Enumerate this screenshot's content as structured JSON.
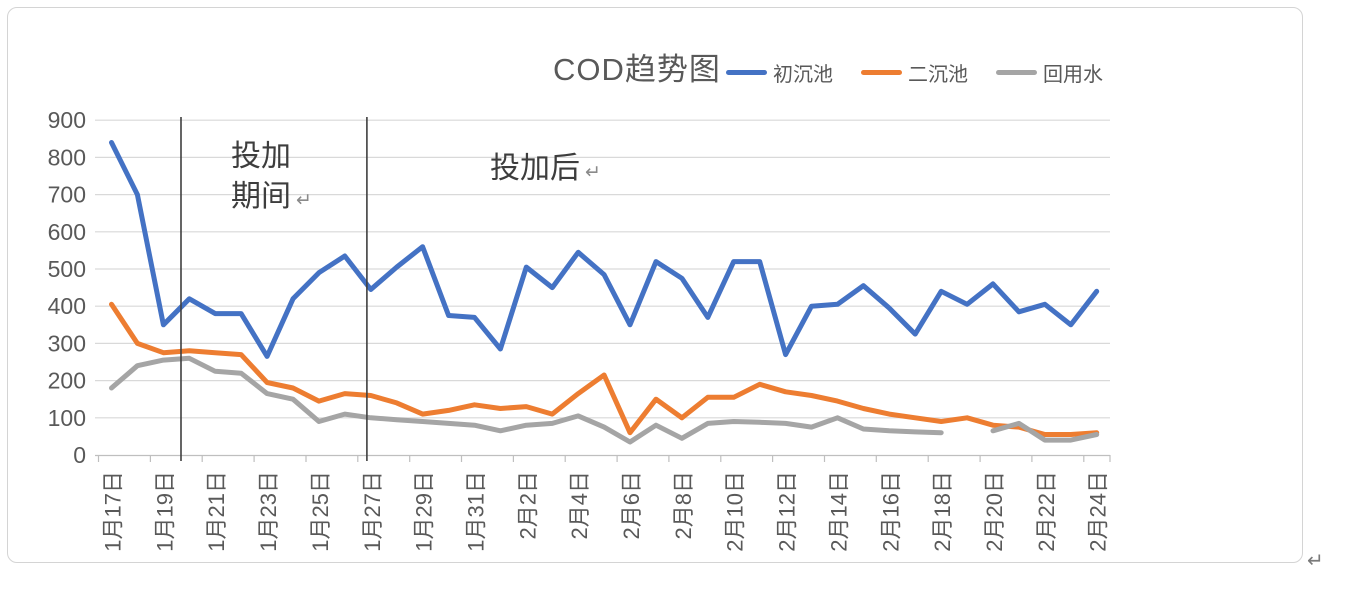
{
  "document": {
    "paragraph_return_mark": "↵"
  },
  "chart": {
    "title": "COD趋势图",
    "legend_items": [
      {
        "label": "初沉池",
        "color": "#4472C4"
      },
      {
        "label": "二沉池",
        "color": "#ED7D31"
      },
      {
        "label": "回用水",
        "color": "#A5A5A5"
      }
    ],
    "annotations": {
      "during_dosing_line1": "投加",
      "during_dosing_line2": "期间",
      "during_dosing_return_mark": "↵",
      "after_dosing": "投加后",
      "after_dosing_return_mark": "↵"
    }
  },
  "chart_data": {
    "type": "line",
    "title": "COD趋势图",
    "ylim": [
      0,
      900
    ],
    "ytick_interval": 100,
    "yticks": [
      0,
      100,
      200,
      300,
      400,
      500,
      600,
      700,
      800,
      900
    ],
    "grid": true,
    "legend_position": "top-right",
    "x_label_rotation_deg": 90,
    "x_tick_label_step": 2,
    "axis_text_color": "#595959",
    "gridline_color": "#D9D9D9",
    "axis_line_color": "#BFBFBF",
    "categories": [
      "1月17日",
      "1月18日",
      "1月19日",
      "1月20日",
      "1月21日",
      "1月22日",
      "1月23日",
      "1月24日",
      "1月25日",
      "1月26日",
      "1月27日",
      "1月28日",
      "1月29日",
      "1月30日",
      "1月31日",
      "2月1日",
      "2月2日",
      "2月3日",
      "2月4日",
      "2月5日",
      "2月6日",
      "2月7日",
      "2月8日",
      "2月9日",
      "2月10日",
      "2月11日",
      "2月12日",
      "2月13日",
      "2月14日",
      "2月15日",
      "2月16日",
      "2月17日",
      "2月18日",
      "2月19日",
      "2月20日",
      "2月21日",
      "2月22日",
      "2月23日",
      "2月24日"
    ],
    "x_tick_labels_shown": [
      "1月17日",
      "1月19日",
      "1月21日",
      "1月23日",
      "1月25日",
      "1月27日",
      "1月29日",
      "1月31日",
      "2月2日",
      "2月4日",
      "2月6日",
      "2月8日",
      "2月10日",
      "2月12日",
      "2月14日",
      "2月16日",
      "2月18日",
      "2月20日",
      "2月22日",
      "2月24日"
    ],
    "series": [
      {
        "name": "初沉池",
        "color": "#4472C4",
        "values": [
          840,
          700,
          350,
          420,
          380,
          380,
          265,
          420,
          490,
          535,
          445,
          505,
          560,
          375,
          370,
          285,
          505,
          450,
          545,
          485,
          350,
          520,
          475,
          370,
          520,
          520,
          270,
          400,
          405,
          455,
          395,
          325,
          440,
          405,
          460,
          385,
          405,
          350,
          440
        ]
      },
      {
        "name": "二沉池",
        "color": "#ED7D31",
        "values": [
          405,
          300,
          275,
          280,
          275,
          270,
          195,
          180,
          145,
          165,
          160,
          140,
          110,
          120,
          135,
          125,
          130,
          110,
          165,
          215,
          60,
          150,
          100,
          155,
          155,
          190,
          170,
          160,
          145,
          125,
          110,
          100,
          90,
          100,
          80,
          75,
          55,
          55,
          60
        ]
      },
      {
        "name": "回用水",
        "color": "#A5A5A5",
        "values": [
          180,
          240,
          255,
          260,
          225,
          220,
          165,
          150,
          90,
          110,
          100,
          95,
          90,
          85,
          80,
          65,
          80,
          85,
          105,
          75,
          35,
          80,
          45,
          85,
          90,
          88,
          85,
          75,
          100,
          70,
          65,
          62,
          60,
          null,
          65,
          85,
          40,
          40,
          55
        ]
      }
    ],
    "reference_lines": [
      {
        "x_index": 2.68,
        "label": "投加期间"
      },
      {
        "x_index": 9.85,
        "label": "投加后"
      }
    ]
  }
}
